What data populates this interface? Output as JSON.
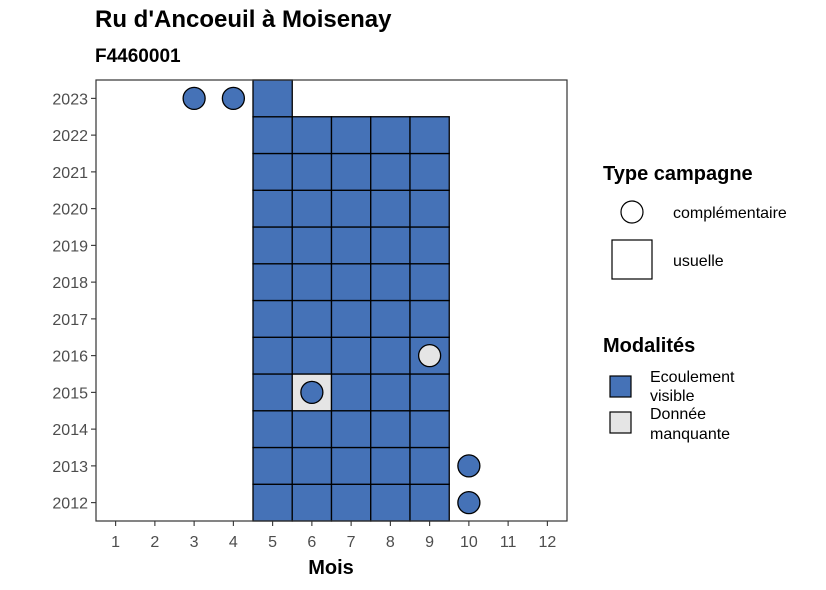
{
  "header": {
    "title": "Ru d'Ancoeuil à Moisenay",
    "subtitle": "F4460001"
  },
  "colors": {
    "ecoulement_visible": "#4572b7",
    "donnee_manquante": "#e5e5e5",
    "border": "#000000",
    "axis_text": "#4d4d4d"
  },
  "chart_data": {
    "type": "heatmap",
    "title": "Ru d'Ancoeuil à Moisenay",
    "subtitle": "F4460001",
    "xlabel": "Mois",
    "ylabel": "",
    "x_ticks": [
      1,
      2,
      3,
      4,
      5,
      6,
      7,
      8,
      9,
      10,
      11,
      12
    ],
    "y_ticks": [
      2012,
      2013,
      2014,
      2015,
      2016,
      2017,
      2018,
      2019,
      2020,
      2021,
      2022,
      2023
    ],
    "xlim": [
      0.5,
      12.5
    ],
    "ylim": [
      2011.5,
      2023.5
    ],
    "grid": false,
    "legend_position": "right",
    "legend": {
      "shape_title": "Type campagne",
      "shapes": [
        {
          "key": "complementaire",
          "label": "complémentaire",
          "shape": "circle"
        },
        {
          "key": "usuelle",
          "label": "usuelle",
          "shape": "square"
        }
      ],
      "fill_title": "Modalités",
      "fills": [
        {
          "key": "ecoulement_visible",
          "label_lines": [
            "Ecoulement",
            "visible"
          ]
        },
        {
          "key": "donnee_manquante",
          "label_lines": [
            "Donnée",
            "manquante"
          ]
        }
      ]
    },
    "usuelle": {
      "months": [
        5,
        6,
        7,
        8,
        9
      ],
      "years": [
        2012,
        2013,
        2014,
        2015,
        2016,
        2017,
        2018,
        2019,
        2020,
        2021,
        2022
      ],
      "extra": [
        {
          "month": 5,
          "year": 2023,
          "modalite": "ecoulement_visible"
        }
      ],
      "exceptions": [
        {
          "month": 6,
          "year": 2015,
          "modalite": "donnee_manquante"
        }
      ],
      "default_modalite": "ecoulement_visible"
    },
    "complementaire": [
      {
        "month": 3,
        "year": 2023,
        "modalite": "ecoulement_visible"
      },
      {
        "month": 4,
        "year": 2023,
        "modalite": "ecoulement_visible"
      },
      {
        "month": 6,
        "year": 2015,
        "modalite": "ecoulement_visible"
      },
      {
        "month": 9,
        "year": 2016,
        "modalite": "donnee_manquante"
      },
      {
        "month": 10,
        "year": 2013,
        "modalite": "ecoulement_visible"
      },
      {
        "month": 10,
        "year": 2012,
        "modalite": "ecoulement_visible"
      }
    ]
  }
}
